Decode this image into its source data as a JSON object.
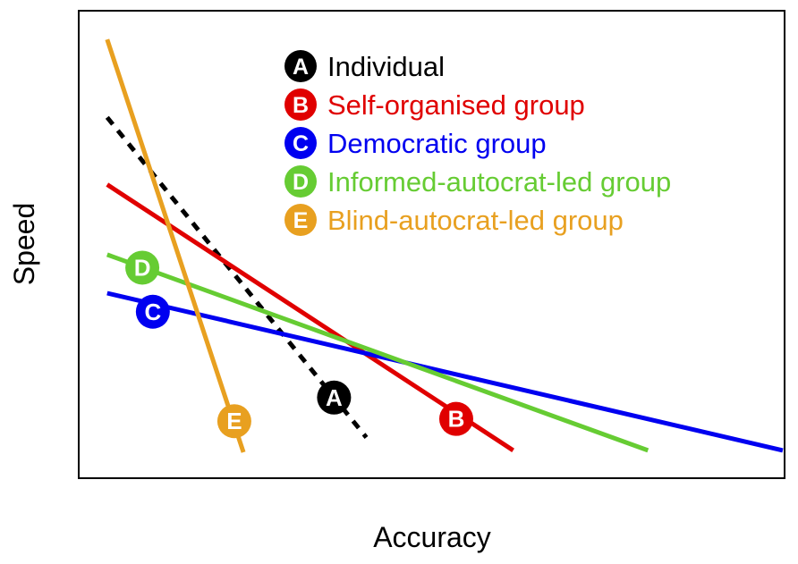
{
  "chart_data": {
    "type": "line",
    "xlabel": "Accuracy",
    "ylabel": "Speed",
    "xlim": [
      0,
      100
    ],
    "ylim": [
      0,
      100
    ],
    "grid": false,
    "axis_ticks": false,
    "legend_position": "top-center",
    "series": [
      {
        "name": "Individual",
        "marker": "A",
        "color": "#000000",
        "line_style": "dashed",
        "x": [
          3.8,
          40.7
        ],
        "y": [
          77.4,
          8.4
        ],
        "label_at": [
          36.1,
          17.0
        ]
      },
      {
        "name": "Self-organised group",
        "marker": "B",
        "color": "#e00000",
        "line_style": "solid",
        "x": [
          3.8,
          61.6
        ],
        "y": [
          62.9,
          5.6
        ],
        "label_at": [
          53.5,
          12.4
        ]
      },
      {
        "name": "Democratic group",
        "marker": "C",
        "color": "#0000f0",
        "line_style": "solid",
        "x": [
          3.8,
          100
        ],
        "y": [
          39.5,
          5.6
        ],
        "label_at": [
          10.3,
          35.5
        ]
      },
      {
        "name": "Informed-autocrat-led group",
        "marker": "D",
        "color": "#66cc33",
        "line_style": "solid",
        "x": [
          3.8,
          80.8
        ],
        "y": [
          47.8,
          5.6
        ],
        "label_at": [
          8.8,
          45.0
        ]
      },
      {
        "name": "Blind-autocrat-led group",
        "marker": "E",
        "color": "#e8a020",
        "line_style": "solid",
        "x": [
          3.8,
          23.2
        ],
        "y": [
          94.2,
          5.2
        ],
        "label_at": [
          21.9,
          11.9
        ]
      }
    ]
  }
}
